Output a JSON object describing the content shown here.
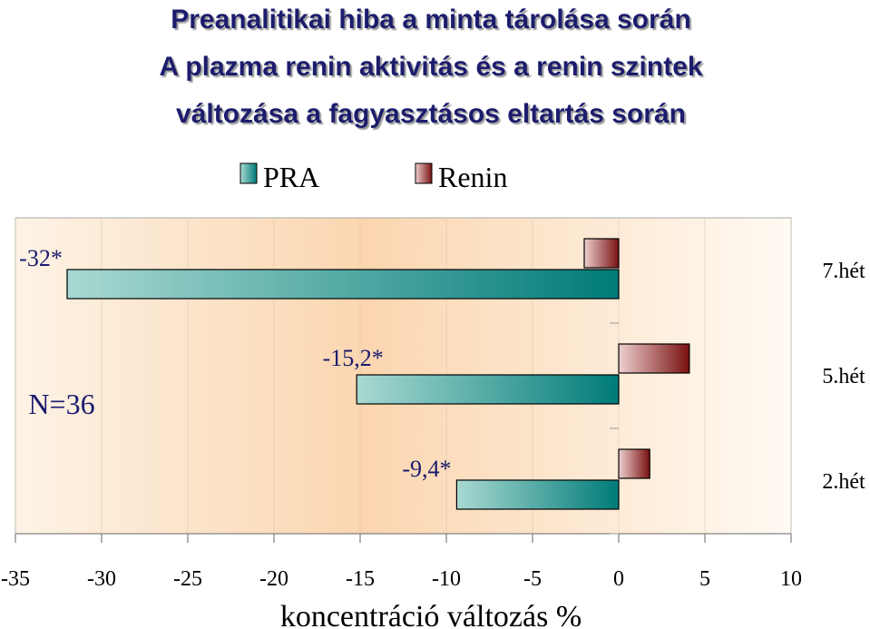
{
  "chart_data": {
    "type": "bar",
    "orientation": "horizontal",
    "title": [
      "Preanalitikai hiba a minta tárolása során",
      "A plazma renin aktivitás és a renin szintek",
      "változása a fagyasztásos  eltartás során"
    ],
    "categories": [
      "7.hét",
      "5.hét",
      "2.hét"
    ],
    "series": [
      {
        "name": "PRA",
        "color": "#007b78",
        "values": [
          -32,
          -15.2,
          -9.4
        ],
        "value_labels": [
          "-32*",
          "-15,2*",
          "-9,4*"
        ]
      },
      {
        "name": "Renin",
        "color": "#7a1010",
        "values": [
          -2,
          4.1,
          1.8
        ]
      }
    ],
    "annotation": "N=36",
    "xlabel": "koncentráció változás %",
    "xlim": [
      -35,
      10
    ],
    "xticks": [
      -35,
      -30,
      -25,
      -20,
      -15,
      -10,
      -5,
      0,
      5,
      10
    ],
    "legend": "top"
  }
}
